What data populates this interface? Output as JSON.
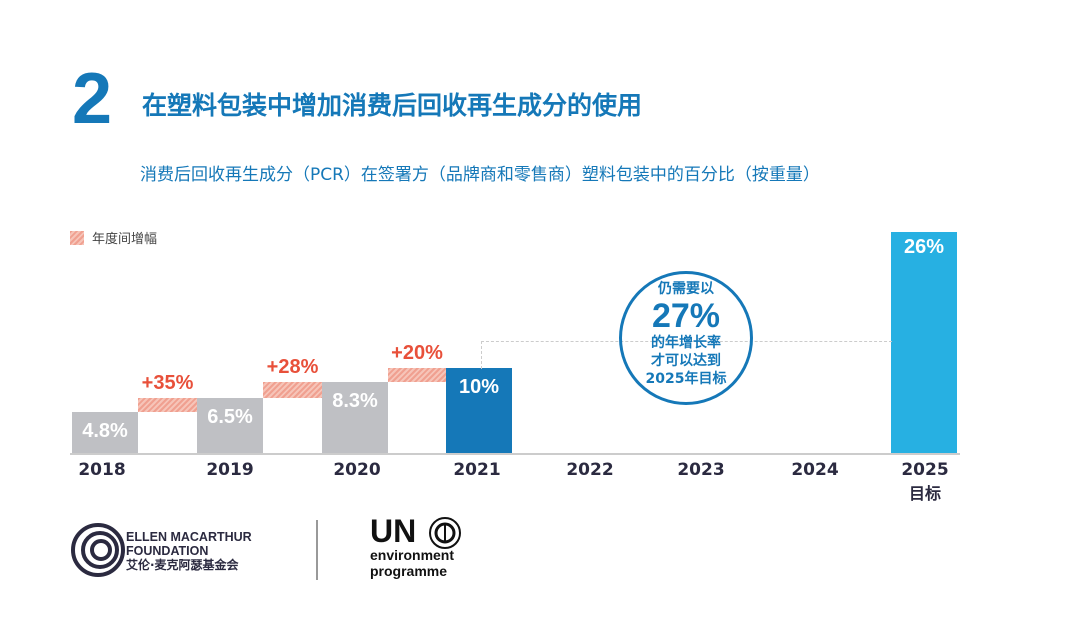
{
  "header": {
    "number": "2",
    "title": "在塑料包装中增加消费后回收再生成分的使用",
    "subtitle": "消费后回收再生成分（PCR）在签署方（品牌商和零售商）塑料包装中的百分比（按重量）"
  },
  "chart_data": {
    "type": "bar",
    "categories": [
      "2018",
      "2019",
      "2020",
      "2021",
      "2022",
      "2023",
      "2024",
      "2025"
    ],
    "category_sublabels": {
      "2025": "目标"
    },
    "values": [
      4.8,
      6.5,
      8.3,
      10,
      null,
      null,
      null,
      26
    ],
    "value_labels": [
      "4.8%",
      "6.5%",
      "8.3%",
      "10%",
      "",
      "",
      "",
      "26%"
    ],
    "increments": [
      {
        "from": "2018",
        "to": "2019",
        "label": "+35%"
      },
      {
        "from": "2019",
        "to": "2020",
        "label": "+28%"
      },
      {
        "from": "2020",
        "to": "2021",
        "label": "+20%"
      }
    ],
    "legend": {
      "label": "年度间增幅",
      "position": "top-left"
    },
    "annotation": {
      "line1": "仍需要以",
      "big": "27%",
      "line2": "的年增长率",
      "line3": "才可以达到",
      "line4": "2025年目标"
    },
    "colors": {
      "historic": "#bfc0c4",
      "2021": "#1578b8",
      "target": "#27b0e2",
      "increment": "#e8503a"
    }
  },
  "footer": {
    "emf": {
      "line1": "ELLEN MACARTHUR",
      "line2": "FOUNDATION",
      "line3": "艾伦·麦克阿瑟基金会"
    },
    "unep": {
      "line1": "UN",
      "line2": "environment",
      "line3": "programme"
    }
  }
}
